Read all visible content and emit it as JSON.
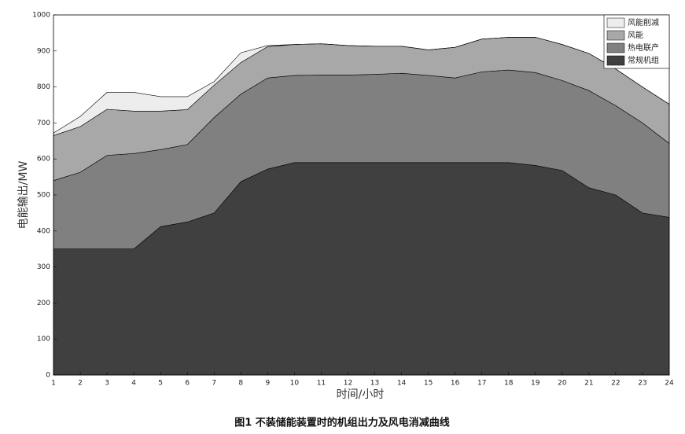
{
  "chart_data": {
    "type": "stacked-area",
    "xlabel": "时间/小时",
    "ylabel": "电能输出/MW",
    "caption": "图1 不装储能装置时的机组出力及风电消减曲线",
    "x": [
      1,
      2,
      3,
      4,
      5,
      6,
      7,
      8,
      9,
      10,
      11,
      12,
      13,
      14,
      15,
      16,
      17,
      18,
      19,
      20,
      21,
      22,
      23,
      24
    ],
    "series": [
      {
        "name": "常规机组",
        "color": "#404040",
        "values": [
          350,
          350,
          350,
          350,
          412,
          425,
          450,
          537,
          572,
          590,
          590,
          590,
          590,
          590,
          590,
          590,
          590,
          590,
          582,
          568,
          520,
          500,
          450,
          438
        ]
      },
      {
        "name": "热电联产",
        "color": "#808080",
        "values": [
          190,
          213,
          260,
          265,
          214,
          215,
          265,
          243,
          253,
          242,
          243,
          243,
          245,
          248,
          242,
          235,
          252,
          257,
          258,
          250,
          270,
          248,
          250,
          205
        ]
      },
      {
        "name": "风能",
        "color": "#a8a8a8",
        "values": [
          125,
          127,
          128,
          118,
          107,
          97,
          90,
          88,
          87,
          86,
          87,
          82,
          78,
          75,
          71,
          85,
          91,
          91,
          98,
          100,
          103,
          102,
          100,
          109
        ]
      },
      {
        "name": "风能削减",
        "color": "#ededed",
        "values": [
          7,
          28,
          47,
          52,
          40,
          36,
          10,
          27,
          3,
          0,
          0,
          0,
          0,
          0,
          0,
          0,
          0,
          0,
          0,
          0,
          0,
          0,
          0,
          0
        ]
      }
    ],
    "xlim": [
      1,
      24
    ],
    "xticks": [
      1,
      2,
      3,
      4,
      5,
      6,
      7,
      8,
      9,
      10,
      11,
      12,
      13,
      14,
      15,
      16,
      17,
      18,
      19,
      20,
      21,
      22,
      23,
      24
    ],
    "ylim": [
      0,
      1000
    ],
    "yticks": [
      0,
      100,
      200,
      300,
      400,
      500,
      600,
      700,
      800,
      900,
      1000
    ],
    "legend": "upper right"
  }
}
